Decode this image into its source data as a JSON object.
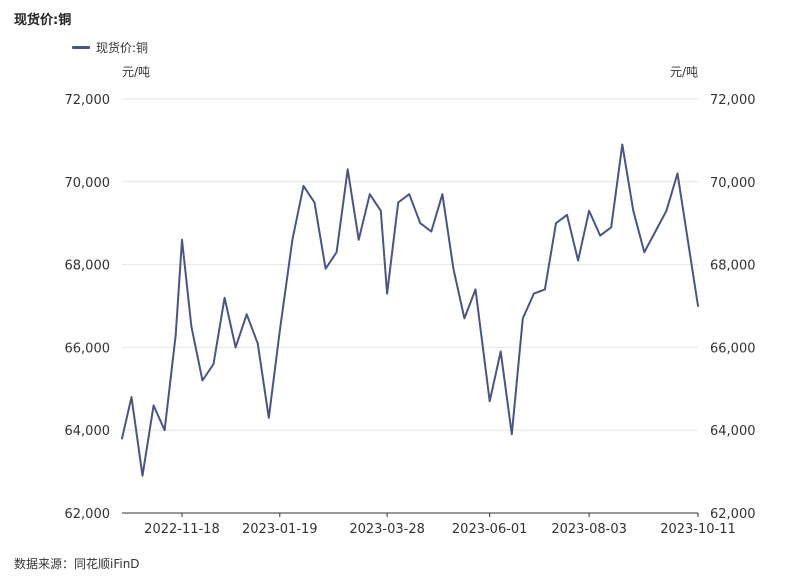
{
  "title": "现货价:铜",
  "source": "数据来源：同花顺iFinD",
  "chart_data": {
    "type": "line",
    "title": "现货价:铜",
    "x": [
      "2022-10-11",
      "2022-10-17",
      "2022-10-24",
      "2022-10-31",
      "2022-11-07",
      "2022-11-14",
      "2022-11-18",
      "2022-11-24",
      "2022-12-01",
      "2022-12-08",
      "2022-12-15",
      "2022-12-22",
      "2022-12-29",
      "2023-01-05",
      "2023-01-12",
      "2023-01-19",
      "2023-01-27",
      "2023-02-03",
      "2023-02-10",
      "2023-02-17",
      "2023-02-24",
      "2023-03-03",
      "2023-03-10",
      "2023-03-17",
      "2023-03-24",
      "2023-03-28",
      "2023-04-04",
      "2023-04-11",
      "2023-04-18",
      "2023-04-25",
      "2023-05-02",
      "2023-05-09",
      "2023-05-16",
      "2023-05-23",
      "2023-06-01",
      "2023-06-08",
      "2023-06-15",
      "2023-06-22",
      "2023-06-29",
      "2023-07-06",
      "2023-07-13",
      "2023-07-20",
      "2023-07-27",
      "2023-08-03",
      "2023-08-10",
      "2023-08-17",
      "2023-08-24",
      "2023-08-31",
      "2023-09-07",
      "2023-09-14",
      "2023-09-21",
      "2023-09-28",
      "2023-10-11"
    ],
    "series": [
      {
        "name": "现货价:铜",
        "values": [
          63800,
          64800,
          62900,
          64600,
          64000,
          66300,
          68600,
          66500,
          65200,
          65600,
          67200,
          66000,
          66800,
          66100,
          64300,
          66400,
          68600,
          69900,
          69500,
          67900,
          68300,
          70300,
          68600,
          69700,
          69300,
          67300,
          69500,
          69700,
          69000,
          68800,
          69700,
          67900,
          66700,
          67400,
          64700,
          65900,
          63900,
          66700,
          67300,
          67400,
          69000,
          69200,
          68100,
          69300,
          68700,
          68900,
          70900,
          69300,
          68300,
          68800,
          69300,
          70200,
          67000
        ]
      }
    ],
    "categories_shown": [
      "2022-11-18",
      "2023-01-19",
      "2023-03-28",
      "2023-06-01",
      "2023-08-03",
      "2023-10-11"
    ],
    "yticks": [
      "62,000",
      "64,000",
      "66,000",
      "68,000",
      "70,000",
      "72,000"
    ],
    "ylim": [
      62000,
      72000
    ],
    "ylabel_left": "元/吨",
    "ylabel_right": "元/吨",
    "legend": "top-left",
    "grid": "horizontal",
    "line_color": "#4a5487"
  }
}
